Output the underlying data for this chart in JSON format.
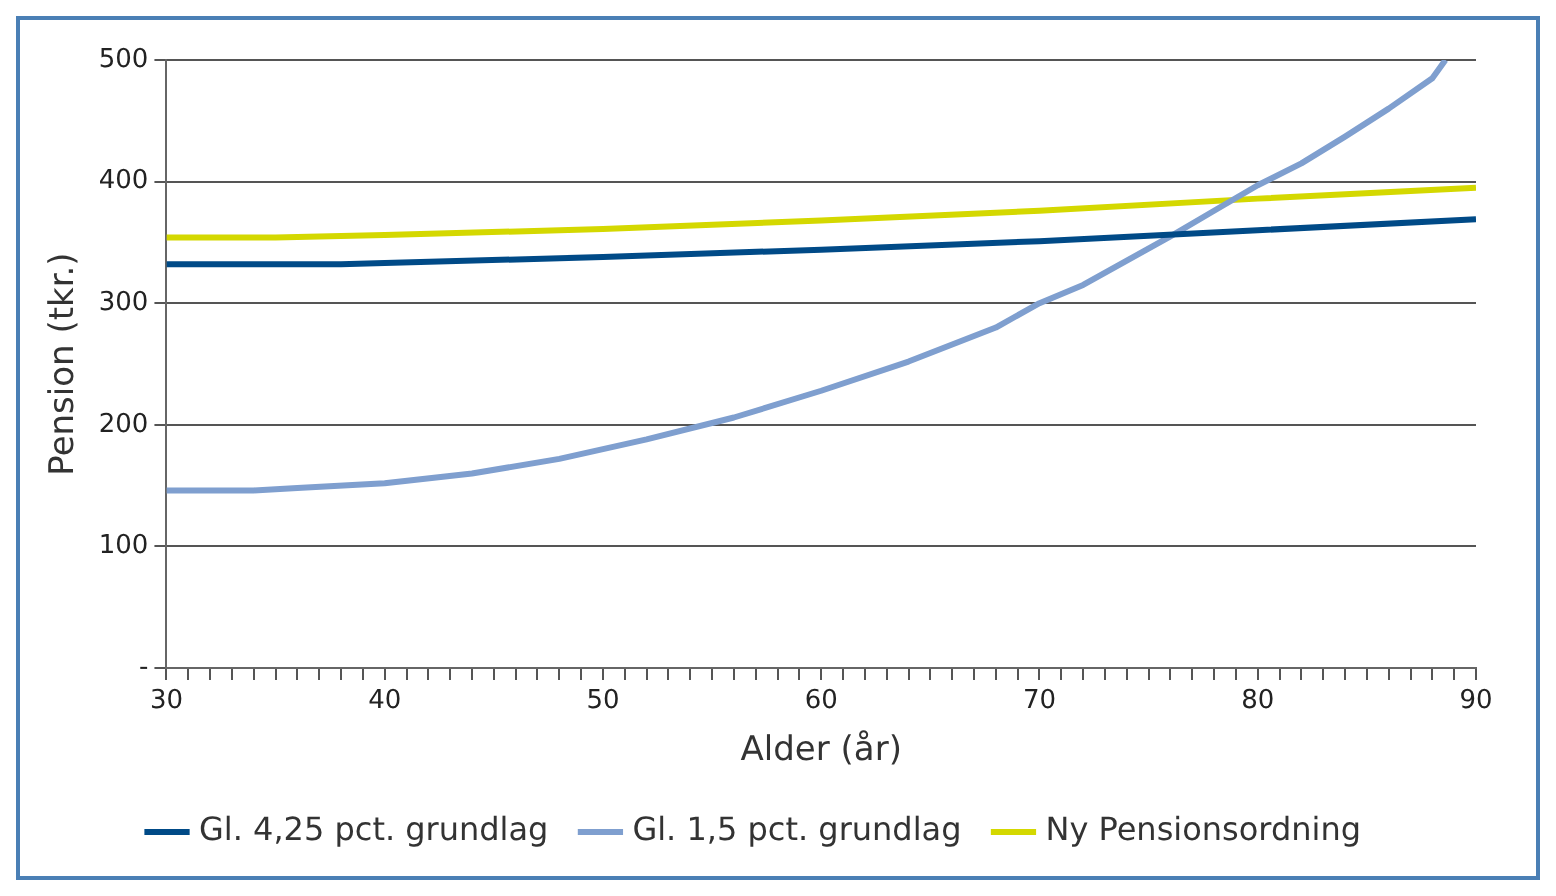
{
  "chart_data": {
    "type": "line",
    "xlabel": "Alder (år)",
    "ylabel": "Pension (tkr.)",
    "xlim": [
      30,
      90
    ],
    "ylim": [
      0,
      500
    ],
    "xticks": [
      30,
      {
        "value": 31,
        "label": null
      },
      {
        "value": 32,
        "label": null
      },
      {
        "value": 33,
        "label": null
      },
      {
        "value": 34,
        "label": null
      },
      {
        "value": 35,
        "label": null
      },
      {
        "value": 36,
        "label": null
      },
      {
        "value": 37,
        "label": null
      },
      {
        "value": 38,
        "label": null
      },
      {
        "value": 39,
        "label": null
      },
      40,
      {
        "value": 41,
        "label": null
      },
      {
        "value": 42,
        "label": null
      },
      {
        "value": 43,
        "label": null
      },
      {
        "value": 44,
        "label": null
      },
      {
        "value": 45,
        "label": null
      },
      {
        "value": 46,
        "label": null
      },
      {
        "value": 47,
        "label": null
      },
      {
        "value": 48,
        "label": null
      },
      {
        "value": 49,
        "label": null
      },
      50,
      {
        "value": 51,
        "label": null
      },
      {
        "value": 52,
        "label": null
      },
      {
        "value": 53,
        "label": null
      },
      {
        "value": 54,
        "label": null
      },
      {
        "value": 55,
        "label": null
      },
      {
        "value": 56,
        "label": null
      },
      {
        "value": 57,
        "label": null
      },
      {
        "value": 58,
        "label": null
      },
      {
        "value": 59,
        "label": null
      },
      60,
      {
        "value": 61,
        "label": null
      },
      {
        "value": 62,
        "label": null
      },
      {
        "value": 63,
        "label": null
      },
      {
        "value": 64,
        "label": null
      },
      {
        "value": 65,
        "label": null
      },
      {
        "value": 66,
        "label": null
      },
      {
        "value": 67,
        "label": null
      },
      {
        "value": 68,
        "label": null
      },
      {
        "value": 69,
        "label": null
      },
      70,
      {
        "value": 71,
        "label": null
      },
      {
        "value": 72,
        "label": null
      },
      {
        "value": 73,
        "label": null
      },
      {
        "value": 74,
        "label": null
      },
      {
        "value": 75,
        "label": null
      },
      {
        "value": 76,
        "label": null
      },
      {
        "value": 77,
        "label": null
      },
      {
        "value": 78,
        "label": null
      },
      {
        "value": 79,
        "label": null
      },
      80,
      {
        "value": 81,
        "label": null
      },
      {
        "value": 82,
        "label": null
      },
      {
        "value": 83,
        "label": null
      },
      {
        "value": 84,
        "label": null
      },
      {
        "value": 85,
        "label": null
      },
      {
        "value": 86,
        "label": null
      },
      {
        "value": 87,
        "label": null
      },
      {
        "value": 88,
        "label": null
      },
      {
        "value": 89,
        "label": null
      },
      90
    ],
    "yticks": [
      {
        "value": 0,
        "label": "-"
      },
      100,
      200,
      300,
      400,
      500
    ],
    "grid": "y",
    "legend": "bottom",
    "marker": "none",
    "line_style": "solid",
    "series": [
      {
        "name": "Gl. 4,25 pct. grundlag",
        "color": "#004a87",
        "x": [
          30,
          38,
          40,
          50,
          60,
          70,
          80,
          90
        ],
        "values": [
          332,
          332,
          333,
          338,
          344,
          351,
          360,
          369
        ]
      },
      {
        "name": "Gl. 1,5 pct. grundlag",
        "color": "#7f9fcf",
        "x": [
          30,
          34,
          36,
          40,
          44,
          48,
          52,
          56,
          60,
          64,
          68,
          70,
          72,
          74,
          76,
          78,
          80,
          82,
          84,
          86,
          88,
          88.6
        ],
        "values": [
          146,
          146,
          148,
          152,
          160,
          172,
          188,
          206,
          228,
          252,
          280,
          300,
          315,
          335,
          355,
          376,
          397,
          415,
          437,
          460,
          485,
          500
        ]
      },
      {
        "name": "Ny Pensionsordning",
        "color": "#d4d800",
        "x": [
          30,
          35,
          40,
          50,
          60,
          70,
          80,
          90
        ],
        "values": [
          354,
          354,
          356,
          361,
          368,
          376,
          386,
          395
        ]
      }
    ]
  }
}
